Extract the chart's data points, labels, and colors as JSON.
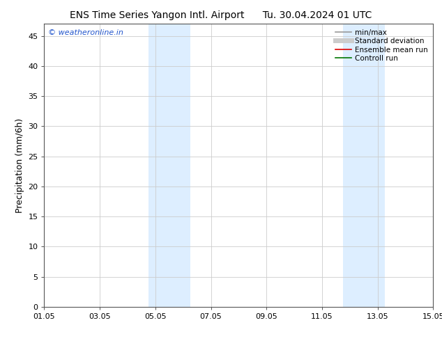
{
  "title_left": "ENS Time Series Yangon Intl. Airport",
  "title_right": "Tu. 30.04.2024 01 UTC",
  "ylabel": "Precipitation (mm/6h)",
  "ylim": [
    0,
    47
  ],
  "yticks": [
    0,
    5,
    10,
    15,
    20,
    25,
    30,
    35,
    40,
    45
  ],
  "xtick_labels": [
    "01.05",
    "03.05",
    "05.05",
    "07.05",
    "09.05",
    "11.05",
    "13.05",
    "15.05"
  ],
  "xtick_positions": [
    0,
    2,
    4,
    6,
    8,
    10,
    12,
    14
  ],
  "xlim": [
    0,
    14
  ],
  "shaded_regions": [
    {
      "start": 3.75,
      "end": 4.5,
      "color": "#ddeeff"
    },
    {
      "start": 4.5,
      "end": 5.25,
      "color": "#ddeeff"
    },
    {
      "start": 10.75,
      "end": 11.5,
      "color": "#ddeeff"
    },
    {
      "start": 11.5,
      "end": 12.25,
      "color": "#ddeeff"
    }
  ],
  "legend_entries": [
    {
      "label": "min/max",
      "color": "#999999",
      "lw": 1.2,
      "style": "solid"
    },
    {
      "label": "Standard deviation",
      "color": "#cccccc",
      "lw": 5,
      "style": "solid"
    },
    {
      "label": "Ensemble mean run",
      "color": "#dd0000",
      "lw": 1.2,
      "style": "solid"
    },
    {
      "label": "Controll run",
      "color": "#007700",
      "lw": 1.2,
      "style": "solid"
    }
  ],
  "watermark_text": "© weatheronline.in",
  "watermark_color": "#2255cc",
  "background_color": "#ffffff",
  "plot_bg_color": "#ffffff",
  "grid_color": "#cccccc",
  "title_fontsize": 10,
  "axis_label_fontsize": 9,
  "tick_fontsize": 8,
  "legend_fontsize": 7.5,
  "watermark_fontsize": 8
}
